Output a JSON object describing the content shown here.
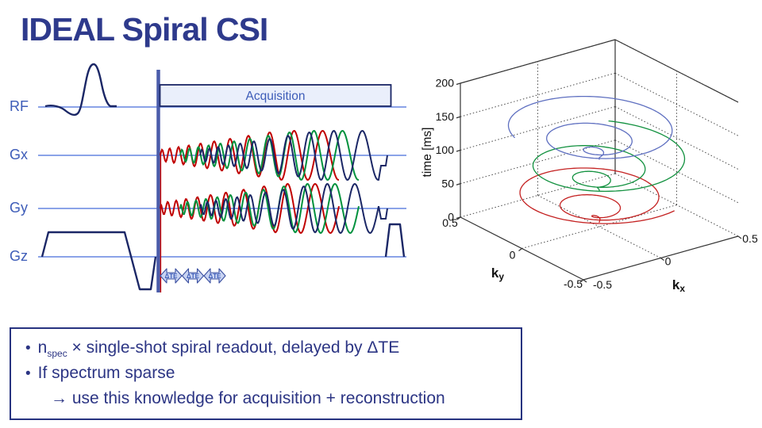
{
  "title": "IDEAL Spiral CSI",
  "bullet_char": "•",
  "sequence": {
    "rows": [
      {
        "label": "RF"
      },
      {
        "label": "Gx"
      },
      {
        "label": "Gy"
      },
      {
        "label": "Gz"
      }
    ],
    "acquisition_label": "Acquisition",
    "delta_te_label": "ΔTE",
    "num_delta_te_arrows": 3,
    "shot_colors": [
      "#c00000",
      "#00913d",
      "#1b2766"
    ],
    "colors": {
      "baseline": "#8ba3e8",
      "pulse": "#1b2766",
      "label": "#3d5cb8",
      "box_fill": "#eaeffb",
      "box_border": "#1b2766",
      "arrow_fill": "#c9d4f2",
      "arrow_border": "#3a4fa0",
      "arrow_text": "#3d5cb8",
      "marker_line": "#4a5caa",
      "marker_accent": "#c00000"
    }
  },
  "chart_data": {
    "type": "line3d",
    "title": "",
    "zlabel": "time [ms]",
    "xlabel": {
      "base": "k",
      "sub": "x"
    },
    "ylabel": {
      "base": "k",
      "sub": "y"
    },
    "xlim": [
      -0.5,
      0.5
    ],
    "ylim": [
      -0.5,
      0.5
    ],
    "zlim": [
      0,
      200
    ],
    "x_ticks": [
      -0.5,
      0,
      0.5
    ],
    "y_ticks": [
      0.5,
      0,
      -0.5
    ],
    "z_ticks": [
      0,
      50,
      100,
      150,
      200
    ],
    "grid": true,
    "legend": false,
    "series": [
      {
        "color": "#c42222",
        "t_start_ms": 6,
        "duration_ms": 52,
        "turns": 3,
        "k_max": 0.47,
        "phase": -1.3
      },
      {
        "color": "#12913f",
        "t_start_ms": 53,
        "duration_ms": 52,
        "turns": 3,
        "k_max": 0.47,
        "phase": 0.8
      },
      {
        "color": "#5e6fc0",
        "t_start_ms": 100,
        "duration_ms": 52,
        "turns": 3,
        "k_max": 0.47,
        "phase": 2.9
      }
    ]
  },
  "notes": {
    "items": [
      {
        "pre": "n",
        "sub": "spec",
        "post": " × single-shot spiral readout, delayed by ΔTE"
      },
      {
        "text": "If spectrum sparse"
      },
      {
        "text": "→ use this knowledge for acquisition + reconstruction"
      }
    ]
  }
}
